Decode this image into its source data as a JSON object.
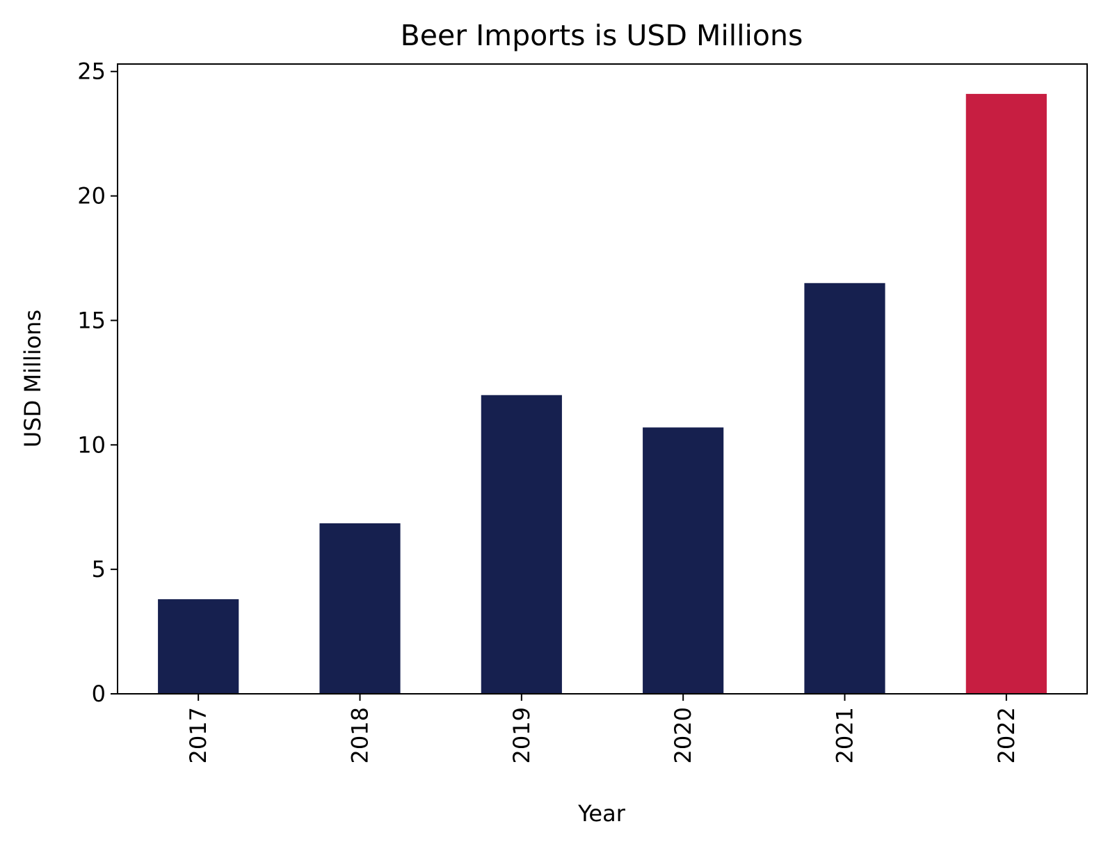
{
  "chart_data": {
    "type": "bar",
    "title": "Beer Imports is USD Millions",
    "xlabel": "Year",
    "ylabel": "USD Millions",
    "categories": [
      "2017",
      "2018",
      "2019",
      "2020",
      "2021",
      "2022"
    ],
    "values": [
      3.8,
      6.85,
      12.0,
      10.7,
      16.5,
      24.1
    ],
    "bar_colors": [
      "#16204f",
      "#16204f",
      "#16204f",
      "#16204f",
      "#16204f",
      "#c71e41"
    ],
    "ylim": [
      0,
      25.3
    ],
    "yticks": [
      0,
      5,
      10,
      15,
      20,
      25
    ],
    "ytick_labels": [
      "0",
      "5",
      "10",
      "15",
      "20",
      "25"
    ],
    "grid": false,
    "x_tick_rotation": "vertical"
  }
}
